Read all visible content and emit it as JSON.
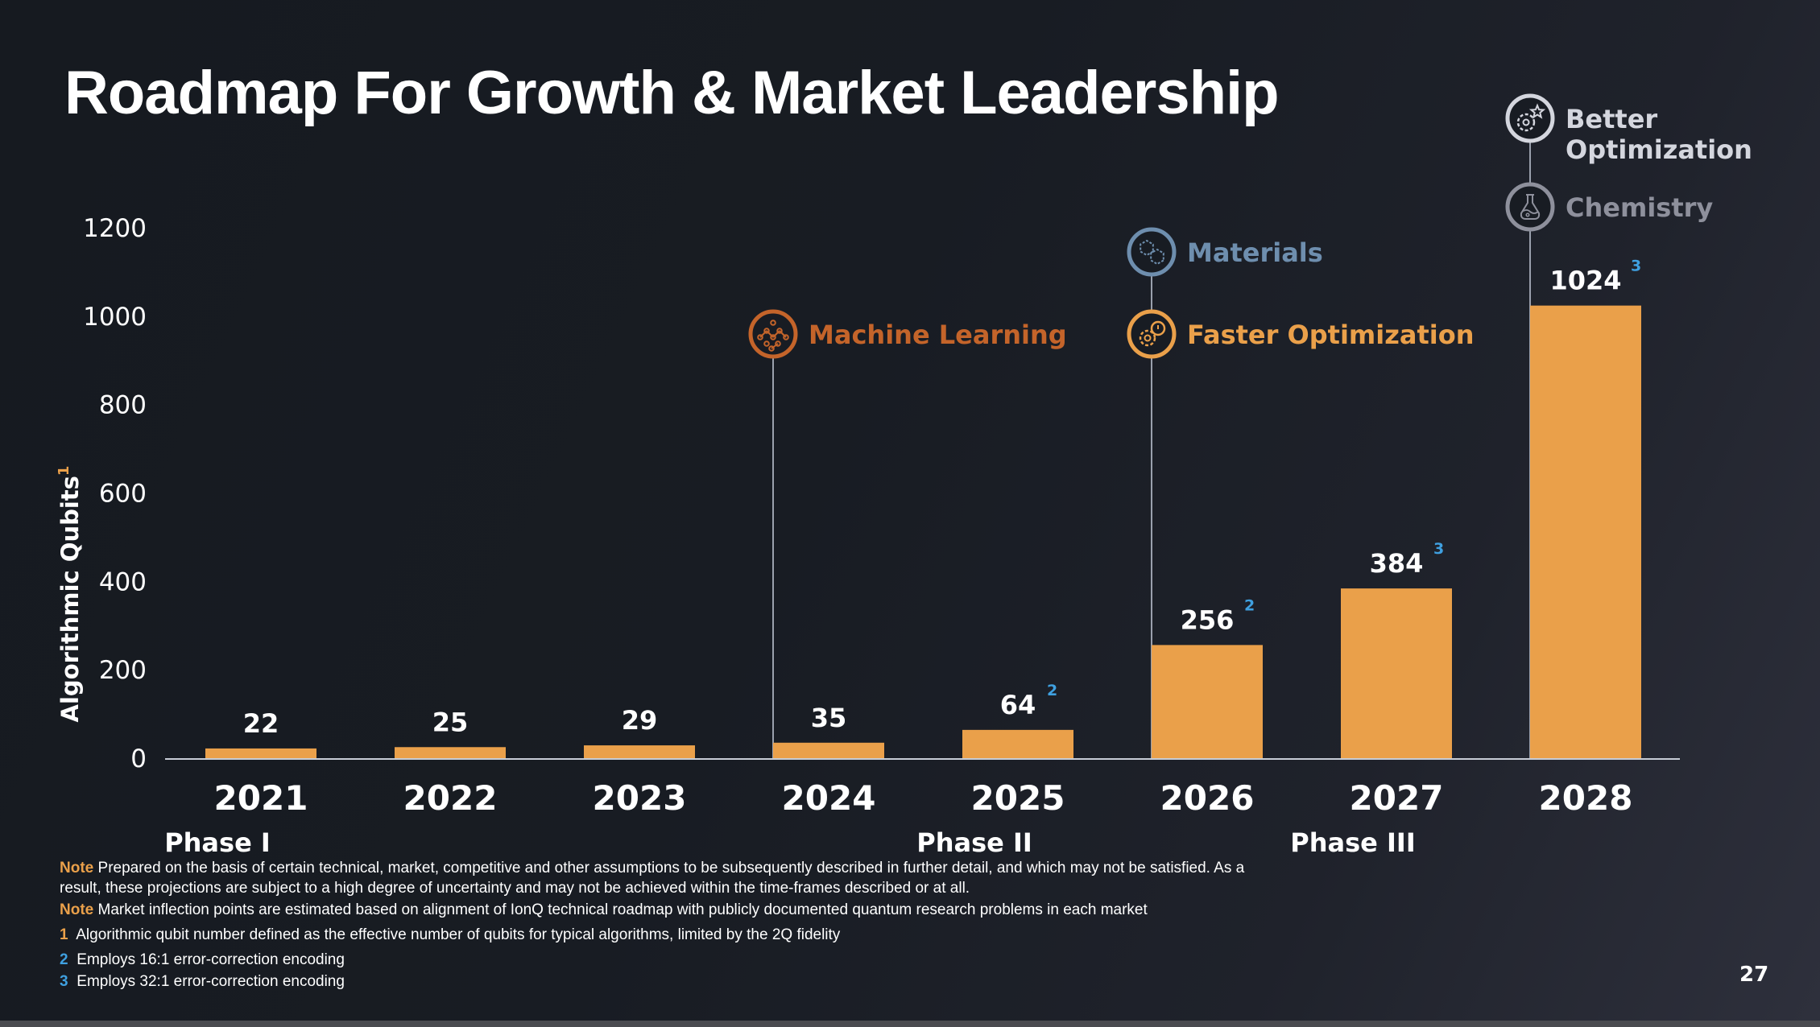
{
  "slide": {
    "title": "Roadmap For Growth & Market Leadership",
    "page_number": "27"
  },
  "colors": {
    "bar": "#eaa04a",
    "axis": "#c7ccd6",
    "milestone_line": "#9aa0ad",
    "footnote_2_3": "#3fa0e0",
    "footnote_1": "#eaa04a"
  },
  "chart_data": {
    "type": "bar",
    "title": "Roadmap For Growth & Market Leadership",
    "xlabel": "",
    "ylabel": "Algorithmic Qubits",
    "ylabel_footnote": "1",
    "ylim": [
      0,
      1200
    ],
    "yticks": [
      0,
      200,
      400,
      600,
      800,
      1000,
      1200
    ],
    "grid": false,
    "categories": [
      "2021",
      "2022",
      "2023",
      "2024",
      "2025",
      "2026",
      "2027",
      "2028"
    ],
    "values": [
      22,
      25,
      29,
      35,
      64,
      256,
      384,
      1024
    ],
    "value_labels": [
      "22",
      "25",
      "29",
      "35",
      "64",
      "256",
      "384",
      "1024"
    ],
    "value_footnotes": [
      "",
      "",
      "",
      "",
      "2",
      "2",
      "3",
      "3"
    ],
    "phases": [
      {
        "label": "Phase I",
        "start_category": "2021"
      },
      {
        "label": "Phase II",
        "start_category": "2025"
      },
      {
        "label": "Phase III",
        "start_category": "2027"
      }
    ],
    "milestones": [
      {
        "category": "2024",
        "items": [
          {
            "label": "Machine Learning",
            "icon": "neural-network-icon",
            "color": "#c4642a"
          }
        ]
      },
      {
        "category": "2026",
        "items": [
          {
            "label": "Faster Optimization",
            "icon": "gear-timer-icon",
            "color": "#eaa04a"
          },
          {
            "label": "Materials",
            "icon": "molecule-icon",
            "color": "#6e8eae"
          }
        ]
      },
      {
        "category": "2028",
        "items": [
          {
            "label": "Chemistry",
            "icon": "flask-icon",
            "color": "#8e909c"
          },
          {
            "label": "Better Optimization",
            "icon": "gear-star-icon",
            "color": "#d4d6de"
          }
        ]
      }
    ]
  },
  "notes": {
    "note_label": "Note",
    "note1": "Prepared on the basis of certain technical, market, competitive and other assumptions to be subsequently described in further detail, and which may not be satisfied. As a result, these projections are subject to a high degree of uncertainty and may not be achieved within the time-frames described or at all.",
    "note2": "Market inflection points are estimated based on alignment of IonQ technical roadmap with publicly documented quantum research problems in each market",
    "footnotes": [
      {
        "key": "1",
        "text": "Algorithmic qubit number defined as the effective number of qubits for typical algorithms, limited by the 2Q fidelity"
      },
      {
        "key": "2",
        "text": "Employs 16:1 error-correction encoding"
      },
      {
        "key": "3",
        "text": "Employs 32:1 error-correction encoding"
      }
    ]
  }
}
